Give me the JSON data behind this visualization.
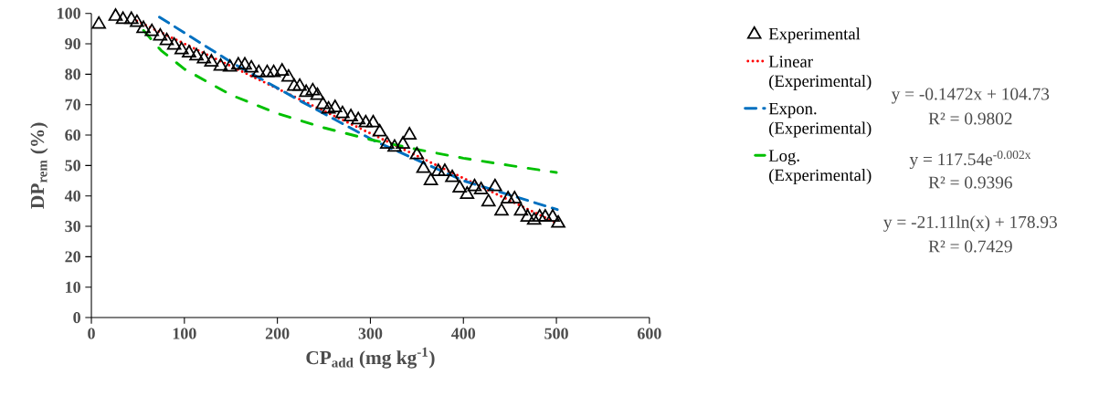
{
  "chart_data": {
    "type": "scatter",
    "xlabel": "CP$_{add}$ (mg kg$^{-1}$)",
    "ylabel": "DP$_{rem}$ (%)",
    "xlim": [
      0,
      600
    ],
    "ylim": [
      0,
      100
    ],
    "xticks": [
      0,
      100,
      200,
      300,
      400,
      500,
      600
    ],
    "yticks": [
      0,
      10,
      20,
      30,
      40,
      50,
      60,
      70,
      80,
      90,
      100
    ],
    "grid": false,
    "legend": "right",
    "series": [
      {
        "name": "Experimental",
        "type": "scatter",
        "marker": "triangle",
        "color": "#000000",
        "x": [
          8,
          26,
          34,
          43,
          49,
          56,
          65,
          74,
          81,
          89,
          97,
          105,
          113,
          121,
          129,
          139,
          149,
          158,
          165,
          172,
          180,
          189,
          196,
          205,
          212,
          218,
          224,
          231,
          238,
          243,
          249,
          255,
          262,
          270,
          279,
          287,
          295,
          303,
          310,
          318,
          326,
          335,
          342,
          350,
          357,
          365,
          373,
          380,
          388,
          396,
          404,
          412,
          419,
          427,
          434,
          441,
          448,
          455,
          462,
          469,
          476,
          482,
          488,
          496,
          502
        ],
        "values": [
          96.4,
          99,
          98,
          98,
          97,
          95,
          94,
          92.5,
          91,
          89.5,
          88,
          87,
          86,
          85,
          84,
          82.6,
          82.3,
          83,
          83,
          82,
          80.5,
          80.5,
          80.5,
          81,
          79,
          76,
          76,
          74,
          74.5,
          73,
          70,
          68.5,
          69,
          67,
          66,
          65,
          64,
          64,
          61,
          57,
          56,
          57,
          60,
          53.5,
          49,
          45,
          48,
          48,
          46,
          42.6,
          40.5,
          43,
          42,
          38,
          43,
          35,
          39,
          39,
          35,
          33,
          32,
          33,
          33,
          33,
          31
        ]
      },
      {
        "name": "Linear (Experimental)",
        "type": "line",
        "line_style": "dotted",
        "color": "#ff0000",
        "x": [
          45,
          502
        ],
        "values": [
          98.1,
          30.8
        ]
      },
      {
        "name": "Expon. (Experimental)",
        "type": "line",
        "line_style": "dashed",
        "color": "#0070c0",
        "x": [
          72,
          150,
          226,
          305,
          400,
          501
        ],
        "values": [
          99,
          84,
          71,
          58,
          45,
          35.5
        ]
      },
      {
        "name": "Log. (Experimental)",
        "type": "line",
        "line_style": "dashdot",
        "color": "#00c000",
        "x": [
          48,
          75,
          100,
          150,
          200,
          250,
          300,
          350,
          400,
          450,
          500
        ],
        "values": [
          97.2,
          87.8,
          81.7,
          73.2,
          67.1,
          62.4,
          58.5,
          55.3,
          52.4,
          50.0,
          47.7
        ]
      }
    ],
    "annotations": [
      "y = -0.1472x + 104.73",
      "R² = 0.9802",
      "y = 117.54e$^{-0.002x}$",
      "R² = 0.9396",
      "y = -21.11ln(x) + 178.93",
      "R² = 0.7429"
    ]
  }
}
